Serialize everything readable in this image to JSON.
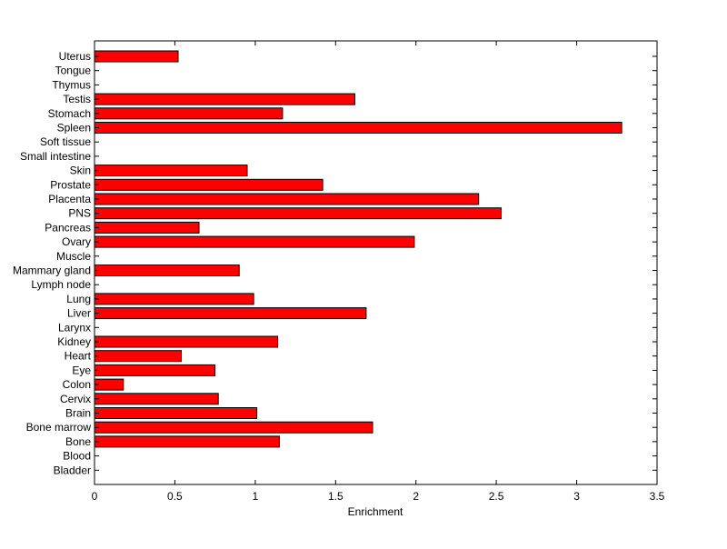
{
  "chart_data": {
    "type": "bar",
    "orientation": "horizontal",
    "title": "",
    "xlabel": "Enrichment",
    "ylabel": "",
    "xlim": [
      0,
      3.5
    ],
    "xticks": [
      0,
      0.5,
      1,
      1.5,
      2,
      2.5,
      3,
      3.5
    ],
    "xtick_labels": [
      "0",
      "0.5",
      "1",
      "1.5",
      "2",
      "2.5",
      "3",
      "3.5"
    ],
    "grid": false,
    "bar_color": "#ff0000",
    "categories": [
      "Bladder",
      "Blood",
      "Bone",
      "Bone marrow",
      "Brain",
      "Cervix",
      "Colon",
      "Eye",
      "Heart",
      "Kidney",
      "Larynx",
      "Liver",
      "Lung",
      "Lymph node",
      "Mammary gland",
      "Muscle",
      "Ovary",
      "Pancreas",
      "PNS",
      "Placenta",
      "Prostate",
      "Skin",
      "Small intestine",
      "Soft tissue",
      "Spleen",
      "Stomach",
      "Testis",
      "Thymus",
      "Tongue",
      "Uterus"
    ],
    "values": [
      0,
      0,
      1.15,
      1.73,
      1.01,
      0.77,
      0.18,
      0.75,
      0.54,
      1.14,
      0,
      1.69,
      0.99,
      0,
      0.9,
      0,
      1.99,
      0.65,
      2.53,
      2.39,
      1.42,
      0.95,
      0,
      0,
      3.28,
      1.17,
      1.62,
      0,
      0,
      0.52
    ]
  }
}
